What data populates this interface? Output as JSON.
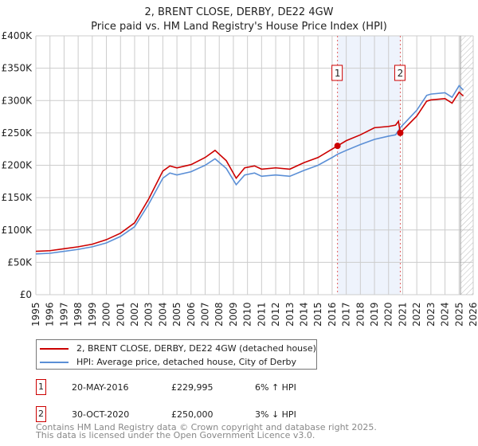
{
  "chart_data": {
    "type": "line",
    "title": "2, BRENT CLOSE, DERBY, DE22 4GW",
    "subtitle": "Price paid vs. HM Land Registry's House Price Index (HPI)",
    "xlim": [
      1995,
      2026
    ],
    "ylim": [
      0,
      400000
    ],
    "yticks": [
      0,
      50000,
      100000,
      150000,
      200000,
      250000,
      300000,
      350000,
      400000
    ],
    "ytick_labels": [
      "£0",
      "£50K",
      "£100K",
      "£150K",
      "£200K",
      "£250K",
      "£300K",
      "£350K",
      "£400K"
    ],
    "xticks": [
      "1995",
      "1996",
      "1997",
      "1998",
      "1999",
      "2000",
      "2001",
      "2002",
      "2003",
      "2004",
      "2005",
      "2006",
      "2007",
      "2008",
      "2009",
      "2010",
      "2011",
      "2012",
      "2013",
      "2014",
      "2015",
      "2016",
      "2017",
      "2018",
      "2019",
      "2020",
      "2021",
      "2022",
      "2023",
      "2024",
      "2025",
      "2026"
    ],
    "grid": true,
    "shaded_range": [
      2016.38,
      2020.83
    ],
    "forecast_hatch_from": 2025.1,
    "series": [
      {
        "name": "2, BRENT CLOSE, DERBY, DE22 4GW (detached house)",
        "color": "#cc0000",
        "x": [
          1995,
          1996,
          1997,
          1998,
          1999,
          2000,
          2001,
          2002,
          2003,
          2004,
          2004.5,
          2005,
          2006,
          2007,
          2007.7,
          2008.5,
          2009.2,
          2009.8,
          2010.5,
          2011,
          2012,
          2013,
          2014,
          2015,
          2016,
          2016.38,
          2017,
          2018,
          2019,
          2020,
          2020.5,
          2020.7,
          2020.83,
          2021,
          2022,
          2022.7,
          2023,
          2024,
          2024.5,
          2025,
          2025.3
        ],
        "y": [
          67000,
          68000,
          71000,
          74000,
          78000,
          85000,
          95000,
          111000,
          148000,
          191000,
          199000,
          196000,
          201000,
          212000,
          223000,
          207000,
          180000,
          196000,
          199000,
          194000,
          196000,
          194000,
          204000,
          212000,
          225000,
          229995,
          238000,
          247000,
          258000,
          260000,
          262000,
          268000,
          250000,
          254000,
          276000,
          299000,
          301000,
          303000,
          296000,
          313000,
          307000
        ]
      },
      {
        "name": "HPI: Average price, detached house, City of Derby",
        "color": "#5b8fd6",
        "x": [
          1995,
          1996,
          1997,
          1998,
          1999,
          2000,
          2001,
          2002,
          2003,
          2004,
          2004.5,
          2005,
          2006,
          2007,
          2007.7,
          2008.5,
          2009.2,
          2009.8,
          2010.5,
          2011,
          2012,
          2013,
          2014,
          2015,
          2016,
          2016.38,
          2017,
          2018,
          2019,
          2020,
          2020.5,
          2020.83,
          2021,
          2022,
          2022.7,
          2023,
          2024,
          2024.5,
          2025,
          2025.3
        ],
        "y": [
          63000,
          64000,
          67000,
          70000,
          74000,
          80000,
          90000,
          105000,
          140000,
          180000,
          188000,
          185000,
          190000,
          200000,
          210000,
          195000,
          170000,
          185000,
          188000,
          183000,
          185000,
          183000,
          192000,
          200000,
          212000,
          217000,
          223000,
          232000,
          240000,
          245000,
          247000,
          258000,
          262000,
          285000,
          308000,
          310000,
          312000,
          305000,
          323000,
          316000
        ]
      }
    ],
    "sales": [
      {
        "label": "1",
        "x": 2016.38,
        "y": 229995
      },
      {
        "label": "2",
        "x": 2020.83,
        "y": 250000
      }
    ]
  },
  "legend": {
    "red": "2, BRENT CLOSE, DERBY, DE22 4GW (detached house)",
    "blue": "HPI: Average price, detached house, City of Derby"
  },
  "transactions": [
    {
      "num": "1",
      "date": "20-MAY-2016",
      "price": "£229,995",
      "hpi": "6% ↑ HPI"
    },
    {
      "num": "2",
      "date": "30-OCT-2020",
      "price": "£250,000",
      "hpi": "3% ↓ HPI"
    }
  ],
  "footer": {
    "line1": "Contains HM Land Registry data © Crown copyright and database right 2025.",
    "line2": "This data is licensed under the Open Government Licence v3.0."
  }
}
